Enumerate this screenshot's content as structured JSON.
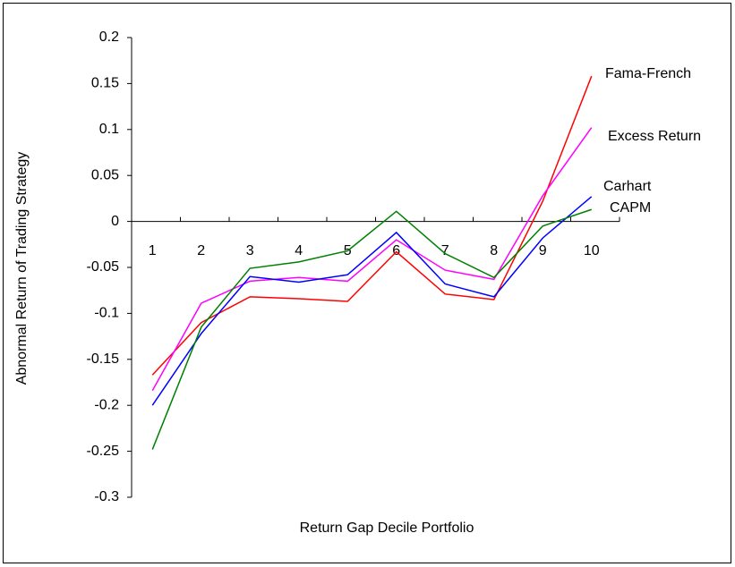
{
  "chart_data": {
    "type": "line",
    "x_label": "Return Gap Decile Portfolio",
    "y_label": "Abnormal Return of Trading Strategy",
    "categories": [
      "1",
      "2",
      "3",
      "4",
      "5",
      "6",
      "7",
      "8",
      "9",
      "10"
    ],
    "series": [
      {
        "name": "Fama-French",
        "color": "#ff0000",
        "values": [
          -0.167,
          -0.11,
          -0.082,
          -0.084,
          -0.087,
          -0.033,
          -0.079,
          -0.085,
          0.022,
          0.158
        ]
      },
      {
        "name": "Excess Return",
        "color": "#ff00ff",
        "values": [
          -0.184,
          -0.089,
          -0.065,
          -0.061,
          -0.065,
          -0.02,
          -0.053,
          -0.063,
          0.028,
          0.102
        ]
      },
      {
        "name": "Carhart",
        "color": "#0000ff",
        "values": [
          -0.2,
          -0.122,
          -0.06,
          -0.066,
          -0.058,
          -0.012,
          -0.068,
          -0.082,
          -0.018,
          0.027
        ]
      },
      {
        "name": "CAPM",
        "color": "#008000",
        "values": [
          -0.248,
          -0.115,
          -0.051,
          -0.044,
          -0.032,
          0.011,
          -0.035,
          -0.061,
          -0.005,
          0.013
        ]
      }
    ],
    "ylim": [
      -0.3,
      0.2
    ],
    "yticks": [
      -0.3,
      -0.25,
      -0.2,
      -0.15,
      -0.1,
      -0.05,
      0,
      0.05,
      0.1,
      0.15,
      0.2
    ],
    "grid": false
  }
}
